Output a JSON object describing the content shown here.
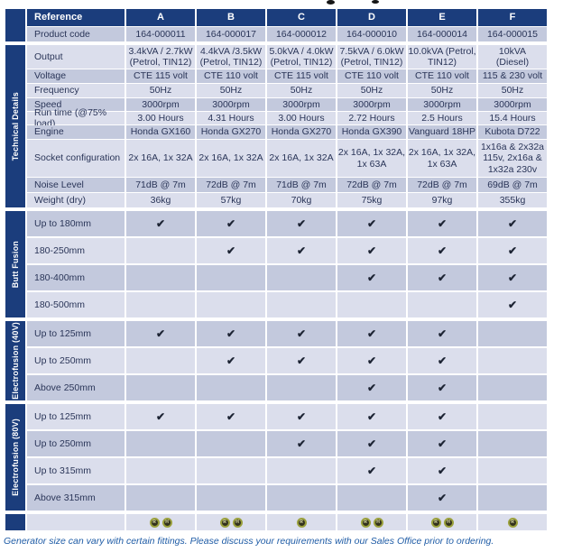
{
  "columns": [
    "A",
    "B",
    "C",
    "D",
    "E",
    "F"
  ],
  "header": {
    "reference_label": "Reference",
    "product_code_label": "Product code",
    "product_codes": [
      "164-000011",
      "164-000017",
      "164-000012",
      "164-000010",
      "164-000014",
      "164-000015"
    ]
  },
  "sections": [
    {
      "sidebar_label": "Technical Details",
      "type": "values",
      "rows": [
        {
          "label": "Output",
          "values": [
            "3.4kVA / 2.7kW\n(Petrol, TIN12)",
            "4.4kVA /3.5kW\n(Petrol, TIN12)",
            "5.0kVA / 4.0kW\n(Petrol, TIN12)",
            "7.5kVA / 6.0kW\n(Petrol, TIN12)",
            "10.0kVA (Petrol,\nTIN12)",
            "10kVA\n(Diesel)"
          ]
        },
        {
          "label": "Voltage",
          "values": [
            "CTE 115 volt",
            "CTE 110 volt",
            "CTE 115 volt",
            "CTE 110 volt",
            "CTE 110 volt",
            "115 & 230 volt"
          ]
        },
        {
          "label": "Frequency",
          "values": [
            "50Hz",
            "50Hz",
            "50Hz",
            "50Hz",
            "50Hz",
            "50Hz"
          ]
        },
        {
          "label": "Speed",
          "values": [
            "3000rpm",
            "3000rpm",
            "3000rpm",
            "3000rpm",
            "3000rpm",
            "3000rpm"
          ]
        },
        {
          "label": "Run time (@75% load)",
          "values": [
            "3.00 Hours",
            "4.31 Hours",
            "3.00 Hours",
            "2.72 Hours",
            "2.5 Hours",
            "15.4 Hours"
          ]
        },
        {
          "label": "Engine",
          "values": [
            "Honda GX160",
            "Honda GX270",
            "Honda GX270",
            "Honda GX390",
            "Vanguard 18HP",
            "Kubota D722"
          ]
        },
        {
          "label": "Socket configuration",
          "values": [
            "2x 16A, 1x 32A",
            "2x 16A, 1x 32A",
            "2x 16A, 1x 32A",
            "2x 16A, 1x 32A,\n1x 63A",
            "2x 16A, 1x 32A,\n1x 63A",
            "1x16a & 2x32a\n115v, 2x16a &\n1x32a 230v"
          ]
        },
        {
          "label": "Noise Level",
          "values": [
            "71dB @ 7m",
            "72dB @ 7m",
            "71dB @ 7m",
            "72dB @ 7m",
            "72dB @ 7m",
            "69dB @ 7m"
          ]
        },
        {
          "label": "Weight (dry)",
          "values": [
            "36kg",
            "57kg",
            "70kg",
            "75kg",
            "97kg",
            "355kg"
          ]
        }
      ]
    },
    {
      "sidebar_label": "Butt Fusion",
      "type": "checks",
      "rows": [
        {
          "label": "Up to 180mm",
          "checks": [
            1,
            1,
            1,
            1,
            1,
            1
          ]
        },
        {
          "label": "180-250mm",
          "checks": [
            0,
            1,
            1,
            1,
            1,
            1
          ]
        },
        {
          "label": "180-400mm",
          "checks": [
            0,
            0,
            0,
            1,
            1,
            1
          ]
        },
        {
          "label": "180-500mm",
          "checks": [
            0,
            0,
            0,
            0,
            0,
            1
          ]
        }
      ]
    },
    {
      "sidebar_label": "Electrofusion (40V)",
      "type": "checks",
      "rows": [
        {
          "label": "Up to 125mm",
          "checks": [
            1,
            1,
            1,
            1,
            1,
            0
          ]
        },
        {
          "label": "Up to 250mm",
          "checks": [
            0,
            1,
            1,
            1,
            1,
            0
          ]
        },
        {
          "label": "Above 250mm",
          "checks": [
            0,
            0,
            0,
            1,
            1,
            0
          ]
        }
      ]
    },
    {
      "sidebar_label": "Electrofusion (80V)",
      "type": "checks",
      "rows": [
        {
          "label": "Up to 125mm",
          "checks": [
            1,
            1,
            1,
            1,
            1,
            0
          ]
        },
        {
          "label": "Up to 250mm",
          "checks": [
            0,
            0,
            1,
            1,
            1,
            0
          ]
        },
        {
          "label": "Up to 315mm",
          "checks": [
            0,
            0,
            0,
            1,
            1,
            0
          ]
        },
        {
          "label": "Above 315mm",
          "checks": [
            0,
            0,
            0,
            0,
            1,
            0
          ]
        }
      ]
    }
  ],
  "icons": {
    "check": "✔"
  },
  "badges_row": [
    [
      "R",
      "H"
    ],
    [
      "R",
      "H"
    ],
    [
      "R"
    ],
    [
      "R",
      "H"
    ],
    [
      "R",
      "H"
    ],
    [
      "R"
    ]
  ],
  "footer": {
    "note": "Generator size can vary with certain fittings. Please discuss your requirements with our Sales Office prior to ordering."
  },
  "colors": {
    "navy": "#1b3d7c",
    "row_dark": "#c3c9dd",
    "row_light": "#dbdeec",
    "check": "#1d2434",
    "badge_ring": "#9aa03c",
    "footer_text": "#1f5ca6"
  }
}
